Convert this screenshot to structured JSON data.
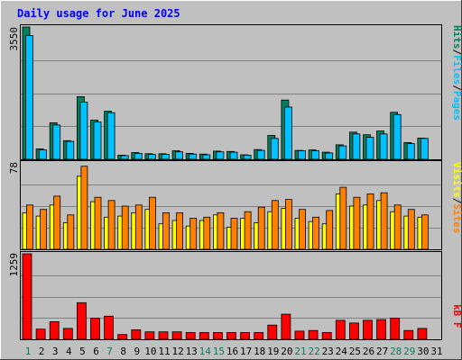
{
  "chart_data": [
    {
      "type": "bar",
      "title": "Daily usage for June 2025",
      "ymax_label": "3550",
      "ymax": 3550,
      "legend": [
        "Pages",
        "Files",
        "Hits"
      ],
      "legend_separators": [
        "/",
        "/"
      ],
      "categories": [
        "1",
        "2",
        "3",
        "4",
        "5",
        "6",
        "7",
        "8",
        "9",
        "10",
        "11",
        "12",
        "13",
        "14",
        "15",
        "16",
        "17",
        "18",
        "19",
        "20",
        "21",
        "22",
        "23",
        "24",
        "25",
        "26",
        "27",
        "28",
        "29",
        "30",
        "31"
      ],
      "series": [
        {
          "name": "Hits",
          "color": "#00805c",
          "values": [
            3550,
            280,
            980,
            500,
            1680,
            1050,
            1290,
            110,
            180,
            150,
            150,
            230,
            160,
            140,
            220,
            210,
            120,
            260,
            640,
            1590,
            240,
            250,
            190,
            390,
            730,
            660,
            760,
            1260,
            450,
            570,
            0
          ]
        },
        {
          "name": "Files",
          "color": "#00c0ff",
          "values": [
            3320,
            250,
            920,
            480,
            1530,
            1000,
            1250,
            100,
            160,
            130,
            130,
            200,
            140,
            120,
            200,
            190,
            110,
            240,
            560,
            1400,
            230,
            230,
            170,
            360,
            680,
            590,
            680,
            1200,
            420,
            560,
            0
          ]
        }
      ]
    },
    {
      "type": "bar",
      "ymax_label": "78",
      "ymax": 78,
      "legend": [
        "Sites",
        "Visits"
      ],
      "legend_separators": [
        "/"
      ],
      "series": [
        {
          "name": "Visits",
          "color": "#ffff00",
          "values": [
            33,
            30,
            40,
            24,
            66,
            43,
            29,
            30,
            33,
            36,
            23,
            26,
            21,
            26,
            31,
            20,
            28,
            24,
            34,
            37,
            28,
            25,
            23,
            50,
            39,
            40,
            44,
            34,
            30,
            29,
            0
          ]
        },
        {
          "name": "Sites",
          "color": "#ff8000",
          "values": [
            40,
            36,
            48,
            31,
            75,
            47,
            44,
            39,
            40,
            47,
            33,
            33,
            28,
            29,
            33,
            28,
            34,
            38,
            44,
            45,
            36,
            29,
            35,
            56,
            47,
            50,
            51,
            40,
            36,
            31,
            0
          ]
        }
      ]
    },
    {
      "type": "bar",
      "ymax_label": "1259",
      "ymax": 1259,
      "legend": [
        "kB F"
      ],
      "series": [
        {
          "name": "kB F",
          "color": "#ff0000",
          "values": [
            1259,
            150,
            260,
            160,
            540,
            310,
            340,
            70,
            140,
            110,
            110,
            110,
            100,
            100,
            100,
            100,
            100,
            100,
            210,
            370,
            120,
            130,
            100,
            280,
            240,
            280,
            290,
            310,
            130,
            160,
            0
          ]
        }
      ]
    }
  ],
  "x_tick_labels": [
    "1",
    "2",
    "3",
    "4",
    "5",
    "6",
    "7",
    "8",
    "9",
    "10",
    "11",
    "12",
    "13",
    "14",
    "15",
    "16",
    "17",
    "18",
    "19",
    "20",
    "21",
    "22",
    "23",
    "24",
    "25",
    "26",
    "27",
    "28",
    "29",
    "30",
    "31"
  ],
  "weekend_days": [
    "1",
    "7",
    "14",
    "15",
    "21",
    "22",
    "28",
    "29"
  ],
  "colors": {
    "background": "#c0c0c0",
    "plot": "#c0c0c0",
    "grid": "#808080",
    "title": "#0000ff",
    "tick_weekday": "#000000",
    "tick_weekend": "#00805c",
    "legend_separator": "#000000"
  }
}
